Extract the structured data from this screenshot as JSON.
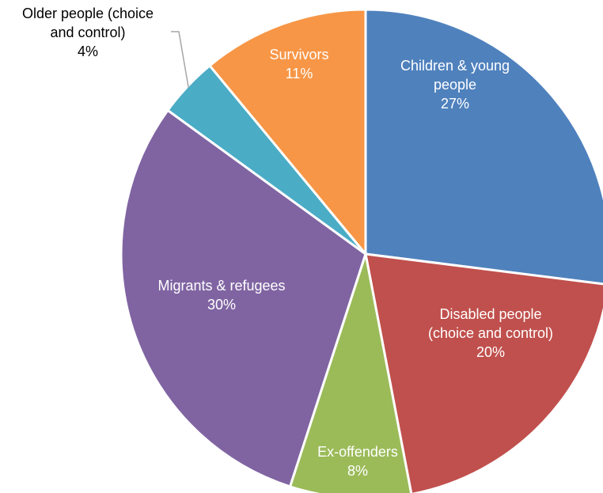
{
  "chart_data": {
    "type": "pie",
    "title": "",
    "colors": [
      "#4F81BD",
      "#C0504D",
      "#9BBB59",
      "#8064A2",
      "#4BACC6",
      "#F79646"
    ],
    "slices": [
      {
        "label_lines": [
          "Children & young",
          "people"
        ],
        "value": 27,
        "value_label": "27%"
      },
      {
        "label_lines": [
          "Disabled people",
          "(choice and control)"
        ],
        "value": 20,
        "value_label": "20%"
      },
      {
        "label_lines": [
          "Ex-offenders"
        ],
        "value": 8,
        "value_label": "8%"
      },
      {
        "label_lines": [
          "Migrants & refugees"
        ],
        "value": 30,
        "value_label": "30%"
      },
      {
        "label_lines": [
          "Older people (choice",
          "and control)"
        ],
        "value": 4,
        "value_label": "4%"
      },
      {
        "label_lines": [
          "Survivors"
        ],
        "value": 11,
        "value_label": "11%"
      }
    ]
  }
}
